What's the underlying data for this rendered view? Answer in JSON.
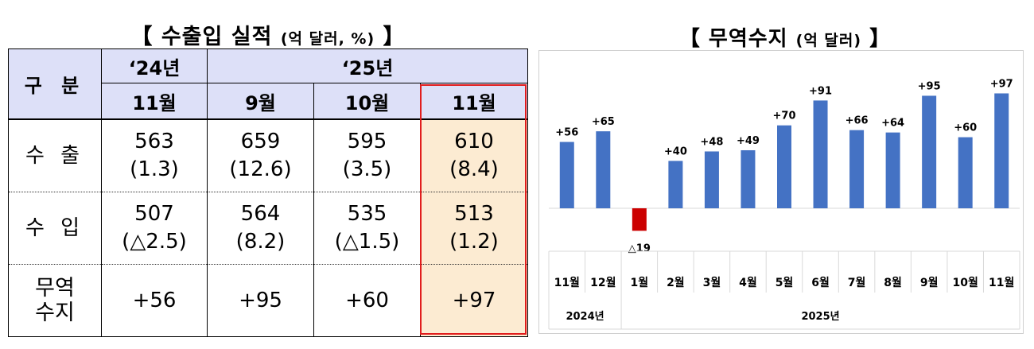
{
  "left": {
    "title": "【 수출입 실적",
    "unit": "(억 달러, %)",
    "title_end": "】",
    "header": {
      "category": "구 분",
      "year_2024": "‘24년",
      "year_2025": "‘25년",
      "months": [
        "11월",
        "9월",
        "10월",
        "11월"
      ]
    },
    "rows": [
      {
        "label": "수 출",
        "values": [
          "563",
          "659",
          "595",
          "610"
        ],
        "rates": [
          "(1.3)",
          "(12.6)",
          "(3.5)",
          "(8.4)"
        ]
      },
      {
        "label": "수 입",
        "values": [
          "507",
          "564",
          "535",
          "513"
        ],
        "rates": [
          "(△2.5)",
          "(8.2)",
          "(△1.5)",
          "(1.2)"
        ]
      }
    ],
    "balance": {
      "label_1": "무역",
      "label_2": "수지",
      "values": [
        "+56",
        "+95",
        "+60",
        "+97"
      ]
    },
    "highlight_color": "#fcebd2",
    "header_color": "#dde0f8",
    "box_color": "#e11d1d"
  },
  "right": {
    "title": "【 무역수지",
    "unit": "(억 달러)",
    "title_end": "】"
  },
  "chart_data": {
    "type": "bar",
    "categories": [
      "11월",
      "12월",
      "1월",
      "2월",
      "3월",
      "4월",
      "5월",
      "6월",
      "7월",
      "8월",
      "9월",
      "10월",
      "11월"
    ],
    "values": [
      56,
      65,
      -19,
      40,
      48,
      49,
      70,
      91,
      66,
      64,
      95,
      60,
      97
    ],
    "labels": [
      "+56",
      "+65",
      "△19",
      "+40",
      "+48",
      "+49",
      "+70",
      "+91",
      "+66",
      "+64",
      "+95",
      "+60",
      "+97"
    ],
    "year_groups": [
      {
        "label": "2024년",
        "count": 2
      },
      {
        "label": "2025년",
        "count": 11
      }
    ],
    "positive_color": "#4472c4",
    "negative_color": "#cc0000",
    "ylim": [
      -30,
      105
    ]
  }
}
